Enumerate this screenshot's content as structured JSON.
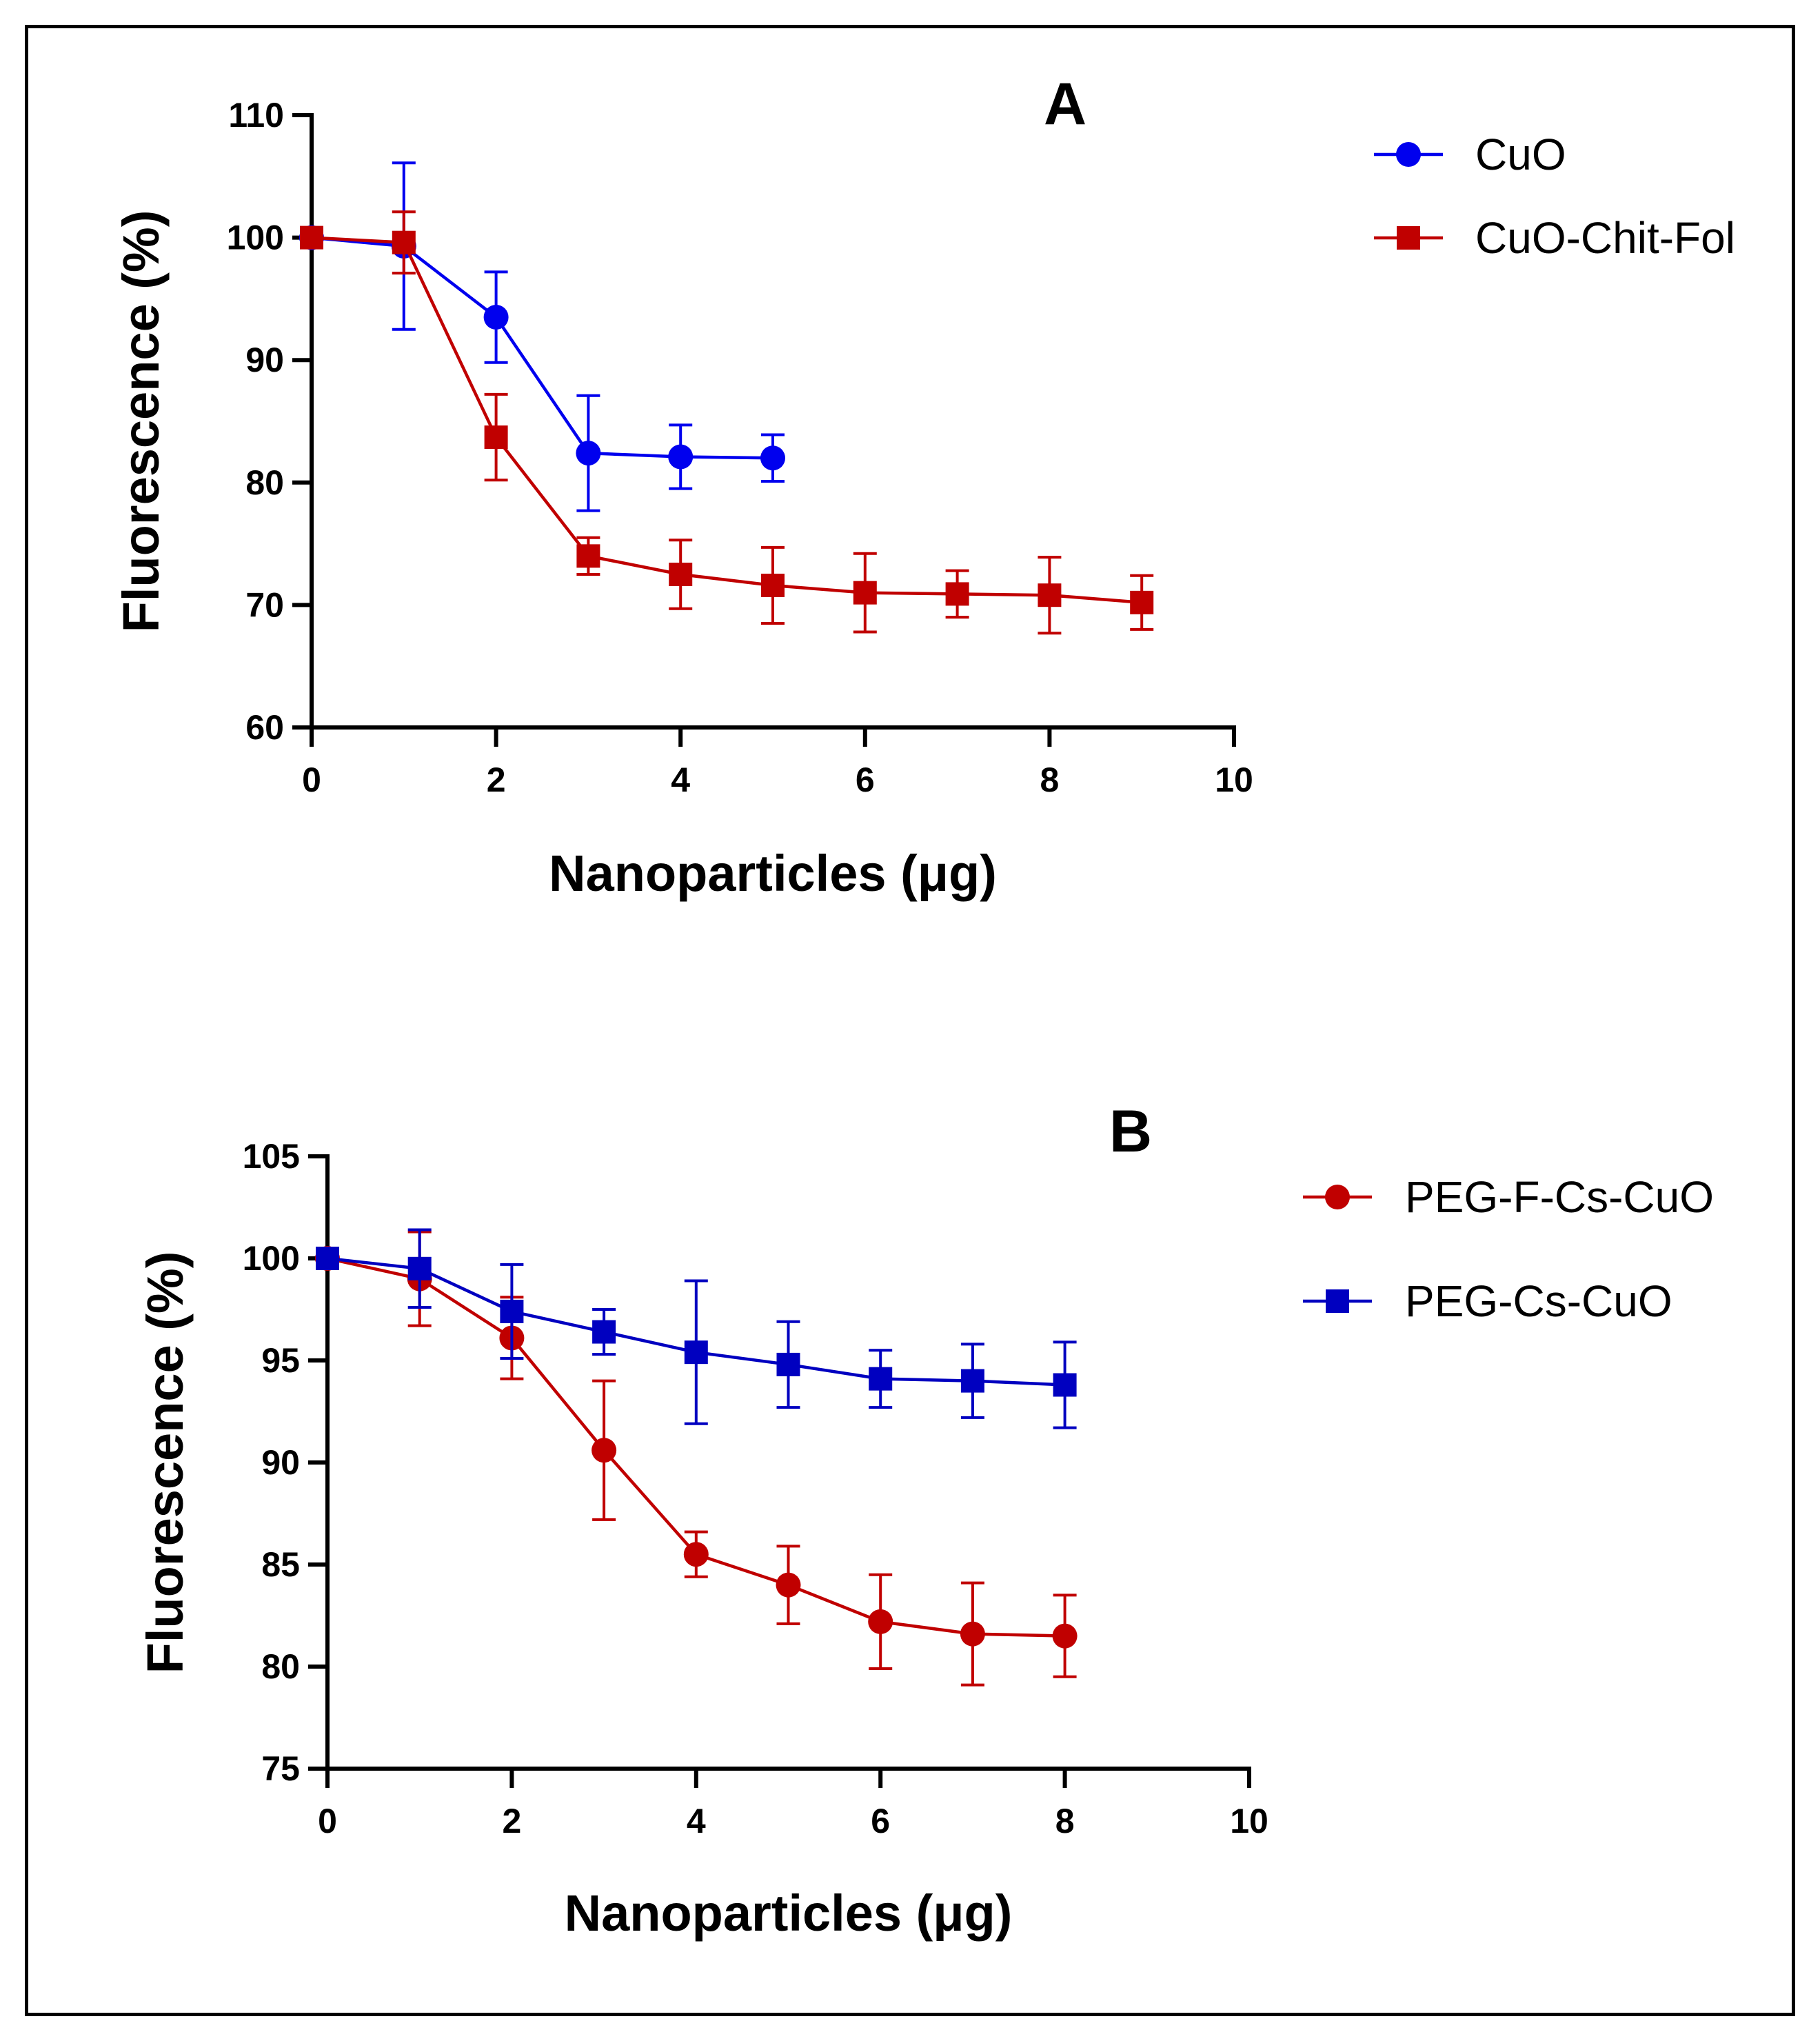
{
  "chart_data": [
    {
      "type": "line",
      "panel_label": "A",
      "xlabel": "Nanoparticles (μg)",
      "ylabel": "Fluorescence (%)",
      "xlim": [
        0,
        10
      ],
      "ylim": [
        60,
        110
      ],
      "xticks": [
        "0",
        "2",
        "4",
        "6",
        "8",
        "10"
      ],
      "yticks": [
        "60",
        "70",
        "80",
        "90",
        "100",
        "110"
      ],
      "legend_position": "top-right",
      "series": [
        {
          "name": "CuO",
          "color": "#0000ee",
          "marker": "circle",
          "x": [
            0,
            1,
            2,
            3,
            4,
            5
          ],
          "y": [
            100,
            99.3,
            93.5,
            82.4,
            82.1,
            82.0
          ],
          "err": [
            0.3,
            6.8,
            3.7,
            4.7,
            2.6,
            1.9
          ]
        },
        {
          "name": "CuO-Chit-Fol",
          "color": "#c00000",
          "marker": "square",
          "x": [
            0,
            1,
            2,
            3,
            4,
            5,
            6,
            7,
            8,
            9
          ],
          "y": [
            100,
            99.6,
            83.7,
            74.0,
            72.5,
            71.6,
            71.0,
            70.9,
            70.8,
            70.2
          ],
          "err": [
            0.3,
            2.5,
            3.5,
            1.5,
            2.8,
            3.1,
            3.2,
            1.9,
            3.1,
            2.2
          ]
        }
      ]
    },
    {
      "type": "line",
      "panel_label": "B",
      "xlabel": "Nanoparticles (μg)",
      "ylabel": "Fluorescence (%)",
      "xlim": [
        0,
        10
      ],
      "ylim": [
        75,
        105
      ],
      "xticks": [
        "0",
        "2",
        "4",
        "6",
        "8",
        "10"
      ],
      "yticks": [
        "75",
        "80",
        "85",
        "90",
        "95",
        "100",
        "105"
      ],
      "legend_position": "top-right",
      "series": [
        {
          "name": "PEG-F-Cs-CuO",
          "color": "#c00000",
          "marker": "circle",
          "x": [
            0,
            1,
            2,
            3,
            4,
            5,
            6,
            7,
            8
          ],
          "y": [
            100,
            99.0,
            96.1,
            90.6,
            85.5,
            84.0,
            82.2,
            81.6,
            81.5
          ],
          "err": [
            0.2,
            2.3,
            2.0,
            3.4,
            1.1,
            1.9,
            2.3,
            2.5,
            2.0
          ]
        },
        {
          "name": "PEG-Cs-CuO",
          "color": "#0000c0",
          "marker": "square",
          "x": [
            0,
            1,
            2,
            3,
            4,
            5,
            6,
            7,
            8
          ],
          "y": [
            100,
            99.5,
            97.4,
            96.4,
            95.4,
            94.8,
            94.1,
            94.0,
            93.8
          ],
          "err": [
            0.2,
            1.9,
            2.3,
            1.1,
            3.5,
            2.1,
            1.4,
            1.8,
            2.1
          ]
        }
      ]
    }
  ]
}
